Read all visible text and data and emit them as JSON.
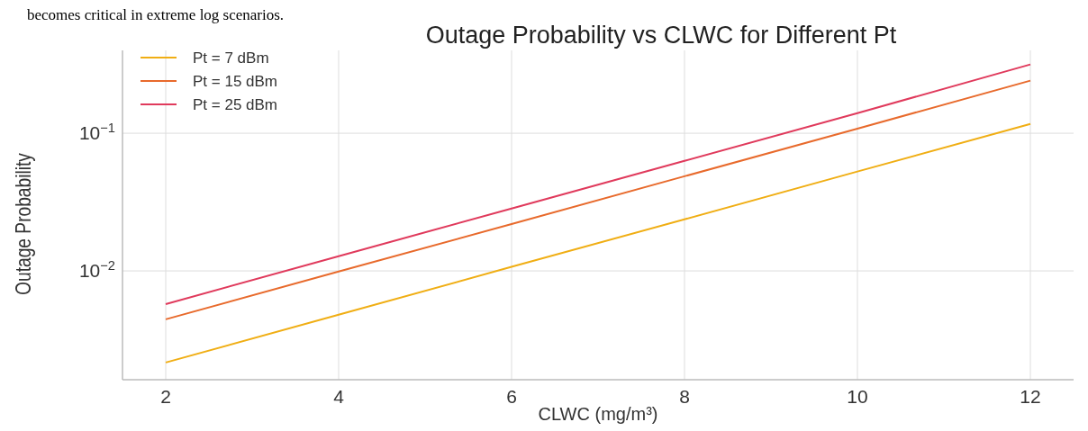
{
  "chart_data": {
    "type": "line",
    "title": "Outage Probability vs CLWC for Different Pt",
    "xlabel": "CLWC (mg/m³)",
    "ylabel": "Outage Probability",
    "annotations": [
      "becomes critical in extreme log scenarios."
    ],
    "log": "y",
    "grid": true,
    "legend": "top left",
    "xlim": [
      1.5,
      12.5
    ],
    "xticks": [
      2,
      4,
      6,
      8,
      10,
      12
    ],
    "ylim": [
      0.00162,
      0.4
    ],
    "yticks": [
      {
        "value": 0.1,
        "label": "10$^{−1}$"
      },
      {
        "value": 0.01,
        "label": "10$^{−2}$"
      }
    ],
    "series": [
      {
        "name": "Pt = 7 dBm",
        "color": "#f0ae14",
        "x": [
          2,
          4,
          6,
          8,
          10,
          12
        ],
        "values": [
          0.00216,
          0.0048,
          0.0107,
          0.0237,
          0.0527,
          0.117
        ]
      },
      {
        "name": "Pt = 15 dBm",
        "color": "#e86a2c",
        "x": [
          2,
          4,
          6,
          8,
          10,
          12
        ],
        "values": [
          0.00445,
          0.0099,
          0.0219,
          0.0487,
          0.108,
          0.241
        ]
      },
      {
        "name": "Pt = 25 dBm",
        "color": "#e03a5c",
        "x": [
          2,
          4,
          6,
          8,
          10,
          12
        ],
        "values": [
          0.00574,
          0.0128,
          0.0284,
          0.063,
          0.14,
          0.316
        ]
      }
    ]
  }
}
